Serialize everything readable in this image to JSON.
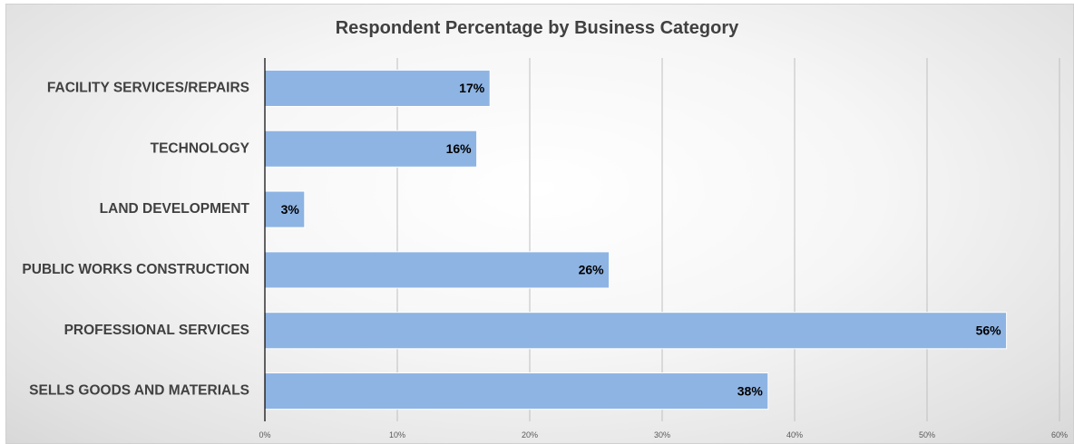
{
  "chart_data": {
    "type": "bar",
    "orientation": "horizontal",
    "title": "Respondent Percentage by Business Category",
    "categories": [
      "FACILITY SERVICES/REPAIRS",
      "TECHNOLOGY",
      "LAND DEVELOPMENT",
      "PUBLIC WORKS CONSTRUCTION",
      "PROFESSIONAL SERVICES",
      "SELLS GOODS AND MATERIALS"
    ],
    "values": [
      17,
      16,
      3,
      26,
      56,
      38
    ],
    "data_labels": [
      "17%",
      "16%",
      "3%",
      "26%",
      "56%",
      "38%"
    ],
    "xlim": [
      0,
      60
    ],
    "x_ticks": [
      "0%",
      "10%",
      "20%",
      "30%",
      "40%",
      "50%",
      "60%"
    ],
    "xlabel": "",
    "ylabel": "",
    "grid": true,
    "legend": "none",
    "bar_color": "#8eb4e3"
  }
}
